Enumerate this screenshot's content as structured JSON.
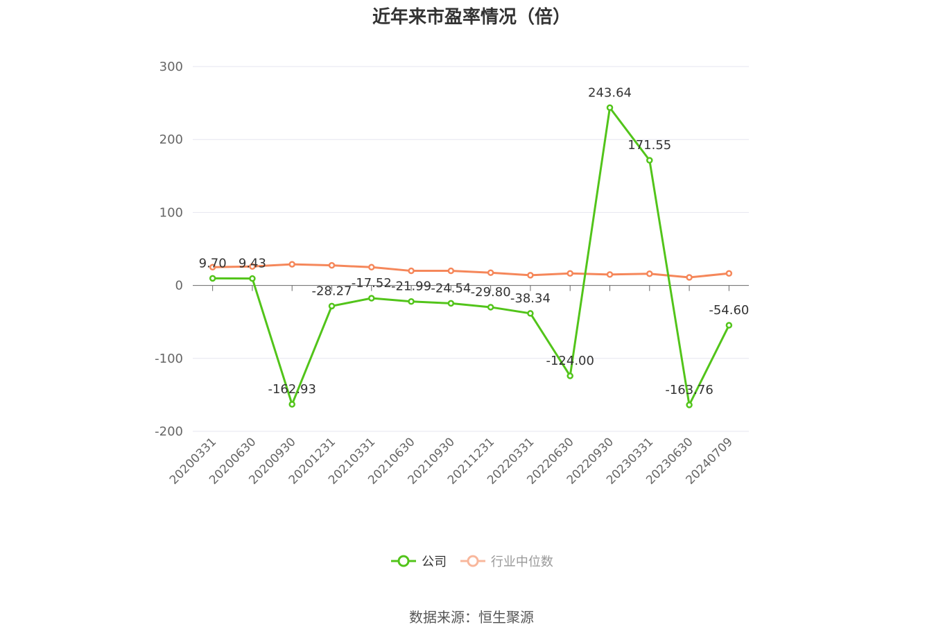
{
  "title": "近年来市盈率情况（倍）",
  "source": "数据来源：恒生聚源",
  "legend": {
    "company": "公司",
    "industry": "行业中位数"
  },
  "colors": {
    "company": "#52c41a",
    "industry": "#f5875a",
    "grid": "#e6e6ef",
    "axis": "#666666"
  },
  "chart_data": {
    "type": "line",
    "title": "近年来市盈率情况（倍）",
    "xlabel": "",
    "ylabel": "",
    "ylim": [
      -200,
      300
    ],
    "yticks": [
      300,
      200,
      100,
      0,
      -100,
      -200
    ],
    "grid": true,
    "legend_position": "bottom",
    "categories": [
      "20200331",
      "20200630",
      "20200930",
      "20201231",
      "20210331",
      "20210630",
      "20210930",
      "20211231",
      "20220331",
      "20220630",
      "20220930",
      "20230331",
      "20230630",
      "20240709"
    ],
    "series": [
      {
        "name": "公司",
        "values": [
          9.7,
          9.43,
          -162.93,
          -28.27,
          -17.52,
          -21.99,
          -24.54,
          -29.8,
          -38.34,
          -124.0,
          243.64,
          171.55,
          -163.76,
          -54.6
        ],
        "labels": [
          "9.70",
          "9.43",
          "-162.93",
          "-28.27",
          "-17.52",
          "-21.99",
          "-24.54",
          "-29.80",
          "-38.34",
          "-124.00",
          "243.64",
          "171.55",
          "-163.76",
          "-54.60"
        ]
      },
      {
        "name": "行业中位数",
        "values": [
          25,
          26,
          29,
          27.5,
          25,
          20,
          20,
          17.5,
          14,
          16.5,
          15,
          16,
          11,
          16.5
        ]
      }
    ]
  }
}
